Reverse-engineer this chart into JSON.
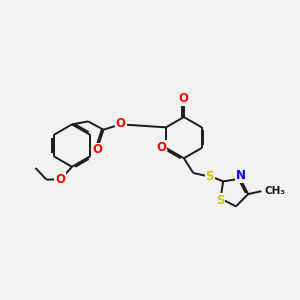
{
  "background_color": "#f2f2f2",
  "bond_color": "#1a1a1a",
  "bond_width": 1.4,
  "atom_colors": {
    "O": "#ff0000",
    "N": "#0000ff",
    "S": "#cccc00",
    "C": "#1a1a1a"
  },
  "font_size_atom": 8.5,
  "font_size_methyl": 7.5,
  "xlim": [
    0,
    10
  ],
  "ylim": [
    0,
    10
  ]
}
